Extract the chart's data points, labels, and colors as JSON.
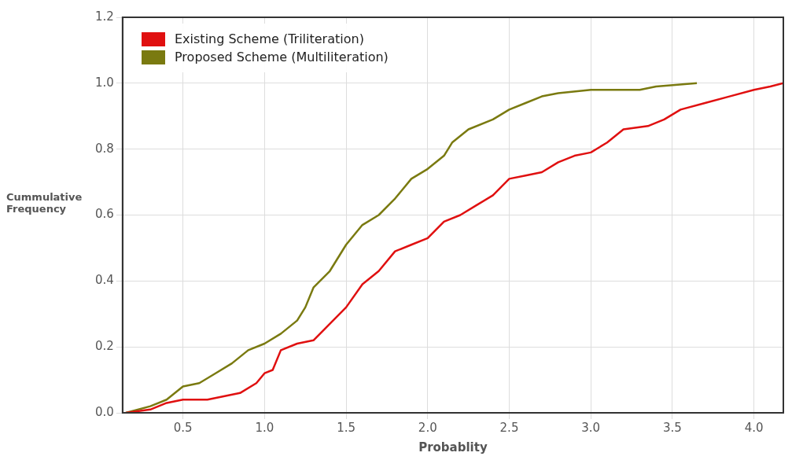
{
  "chart_data": {
    "type": "line",
    "xlabel": "Probablity",
    "ylabel": "Cummulative Frequency",
    "xlim": [
      0.13,
      4.18
    ],
    "xticks": [
      0.5,
      {
        "value": 1,
        "label": "1.0"
      },
      1.5,
      {
        "value": 2,
        "label": "2.0"
      },
      2.5,
      {
        "value": 3,
        "label": "3.0"
      },
      3.5,
      {
        "value": 4,
        "label": "4.0"
      }
    ],
    "ylim": [
      0,
      1.2
    ],
    "yticks": [
      {
        "value": 0,
        "label": "0.0"
      },
      0.2,
      0.4,
      0.6,
      0.8,
      {
        "value": 1,
        "label": "1.0"
      },
      1.2
    ],
    "grid": true,
    "legend": "top left",
    "marker": "none",
    "line_style": "solid",
    "series": [
      {
        "name": "Existing Scheme (Triliteration)",
        "color": "#e01010",
        "x": [
          0.15,
          0.3,
          0.4,
          0.5,
          0.65,
          0.75,
          0.85,
          0.95,
          1.0,
          1.05,
          1.1,
          1.2,
          1.3,
          1.4,
          1.5,
          1.6,
          1.7,
          1.8,
          1.9,
          2.0,
          2.1,
          2.2,
          2.3,
          2.4,
          2.5,
          2.6,
          2.7,
          2.8,
          2.9,
          3.0,
          3.1,
          3.2,
          3.35,
          3.45,
          3.55,
          3.7,
          3.85,
          4.0,
          4.1,
          4.18
        ],
        "values": [
          0.0,
          0.01,
          0.03,
          0.04,
          0.04,
          0.05,
          0.06,
          0.09,
          0.12,
          0.13,
          0.19,
          0.21,
          0.22,
          0.27,
          0.32,
          0.39,
          0.43,
          0.49,
          0.51,
          0.53,
          0.58,
          0.6,
          0.63,
          0.66,
          0.71,
          0.72,
          0.73,
          0.76,
          0.78,
          0.79,
          0.82,
          0.86,
          0.87,
          0.89,
          0.92,
          0.94,
          0.96,
          0.98,
          0.99,
          1.0
        ]
      },
      {
        "name": "Proposed Scheme (Multiliteration)",
        "color": "#7a7a10",
        "x": [
          0.15,
          0.3,
          0.4,
          0.5,
          0.6,
          0.7,
          0.8,
          0.9,
          1.0,
          1.1,
          1.2,
          1.25,
          1.3,
          1.4,
          1.5,
          1.6,
          1.7,
          1.8,
          1.9,
          2.0,
          2.1,
          2.15,
          2.25,
          2.4,
          2.5,
          2.6,
          2.7,
          2.8,
          3.0,
          3.3,
          3.4,
          3.65
        ],
        "values": [
          0.0,
          0.02,
          0.04,
          0.08,
          0.09,
          0.12,
          0.15,
          0.19,
          0.21,
          0.24,
          0.28,
          0.32,
          0.38,
          0.43,
          0.51,
          0.57,
          0.6,
          0.65,
          0.71,
          0.74,
          0.78,
          0.82,
          0.86,
          0.89,
          0.92,
          0.94,
          0.96,
          0.97,
          0.98,
          0.98,
          0.99,
          1.0
        ]
      }
    ]
  }
}
